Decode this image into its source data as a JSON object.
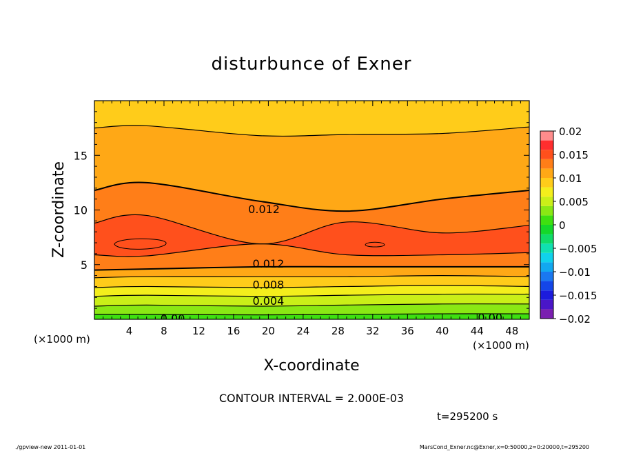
{
  "chart_data": {
    "type": "contour",
    "title": "disturbunce of Exner",
    "xlabel": "X-coordinate",
    "ylabel": "Z-coordinate",
    "x_unit": "(×1000 m)",
    "y_unit": "(×1000 m)",
    "xlim": [
      0,
      50
    ],
    "ylim": [
      0,
      20
    ],
    "x_ticks": [
      4,
      8,
      12,
      16,
      20,
      24,
      28,
      32,
      36,
      40,
      44,
      48
    ],
    "y_ticks": [
      5,
      10,
      15
    ],
    "contour_interval_text": "CONTOUR INTERVAL = 2.000E-03",
    "time_text": "t=295200 s",
    "colorbar": {
      "range": [
        -0.02,
        0.02
      ],
      "tick_labels": [
        "0.02",
        "0.015",
        "0.01",
        "0.005",
        "0",
        "−0.005",
        "−0.01",
        "−0.015",
        "−0.02"
      ],
      "tick_values": [
        0.02,
        0.015,
        0.01,
        0.005,
        0,
        -0.005,
        -0.01,
        -0.015,
        -0.02
      ],
      "levels": [
        {
          "from": -0.02,
          "to": -0.018,
          "color": "#7a1fb0"
        },
        {
          "from": -0.018,
          "to": -0.016,
          "color": "#4a16c8"
        },
        {
          "from": -0.016,
          "to": -0.014,
          "color": "#1c1cdc"
        },
        {
          "from": -0.014,
          "to": -0.012,
          "color": "#1446e8"
        },
        {
          "from": -0.012,
          "to": -0.01,
          "color": "#1a78f0"
        },
        {
          "from": -0.01,
          "to": -0.008,
          "color": "#12a8f0"
        },
        {
          "from": -0.008,
          "to": -0.006,
          "color": "#10d2ec"
        },
        {
          "from": -0.006,
          "to": -0.004,
          "color": "#10e0b0"
        },
        {
          "from": -0.004,
          "to": -0.002,
          "color": "#10dc68"
        },
        {
          "from": -0.002,
          "to": 0.0,
          "color": "#14d82a"
        },
        {
          "from": 0.0,
          "to": 0.002,
          "color": "#3ee010"
        },
        {
          "from": 0.002,
          "to": 0.004,
          "color": "#8ae814"
        },
        {
          "from": 0.004,
          "to": 0.006,
          "color": "#caef18"
        },
        {
          "from": 0.006,
          "to": 0.008,
          "color": "#f4ee1c"
        },
        {
          "from": 0.008,
          "to": 0.01,
          "color": "#ffcc1a"
        },
        {
          "from": 0.01,
          "to": 0.012,
          "color": "#ffa816"
        },
        {
          "from": 0.012,
          "to": 0.014,
          "color": "#ff7e18"
        },
        {
          "from": 0.014,
          "to": 0.016,
          "color": "#ff501c"
        },
        {
          "from": 0.016,
          "to": 0.018,
          "color": "#ff2e2e"
        },
        {
          "from": 0.018,
          "to": 0.02,
          "color": "#ff8c8c"
        }
      ]
    },
    "contour_labels": [
      {
        "text": "0.012",
        "x": 19.5,
        "z": 10.1
      },
      {
        "text": "0.012",
        "x": 20.0,
        "z": 5.1
      },
      {
        "text": "0.008",
        "x": 20.0,
        "z": 3.2
      },
      {
        "text": "0.004",
        "x": 20.0,
        "z": 1.7
      },
      {
        "text": "0.00",
        "x": 9.0,
        "z": 0.1
      },
      {
        "text": "0.00",
        "x": 45.5,
        "z": 0.2
      }
    ],
    "bands": [
      {
        "level": 0.002,
        "z": [
          0.45,
          0.45,
          0.4,
          0.45,
          0.5,
          0.5
        ]
      },
      {
        "level": 0.004,
        "z": [
          1.2,
          1.3,
          1.2,
          1.3,
          1.4,
          1.4
        ]
      },
      {
        "level": 0.006,
        "z": [
          2.1,
          2.2,
          2.1,
          2.2,
          2.3,
          2.3
        ]
      },
      {
        "level": 0.008,
        "z": [
          2.9,
          3.0,
          2.9,
          3.0,
          3.1,
          3.0
        ]
      },
      {
        "level": 0.01,
        "z": [
          3.8,
          3.9,
          3.9,
          3.9,
          4.0,
          3.9
        ]
      },
      {
        "level": 0.012,
        "z": [
          4.5,
          4.6,
          4.8,
          4.8,
          4.8,
          4.8
        ]
      },
      {
        "level": 0.014,
        "z": [
          5.9,
          5.8,
          6.9,
          5.9,
          5.9,
          6.1
        ]
      },
      {
        "level": 0.014,
        "z": [
          8.8,
          9.5,
          6.9,
          8.9,
          7.9,
          8.6
        ]
      },
      {
        "level": 0.012,
        "z": [
          11.8,
          12.5,
          10.8,
          9.9,
          11.0,
          11.8
        ]
      },
      {
        "level": 0.01,
        "z": [
          17.5,
          17.7,
          16.8,
          16.9,
          17.0,
          17.6
        ]
      }
    ],
    "band_x": [
      0,
      6,
      19,
      29,
      40,
      50
    ],
    "footer_left": "./gpview-new  2011-01-01",
    "footer_right": "MarsCond_Exner.nc@Exner,x=0:50000,z=0:20000,t=295200"
  }
}
